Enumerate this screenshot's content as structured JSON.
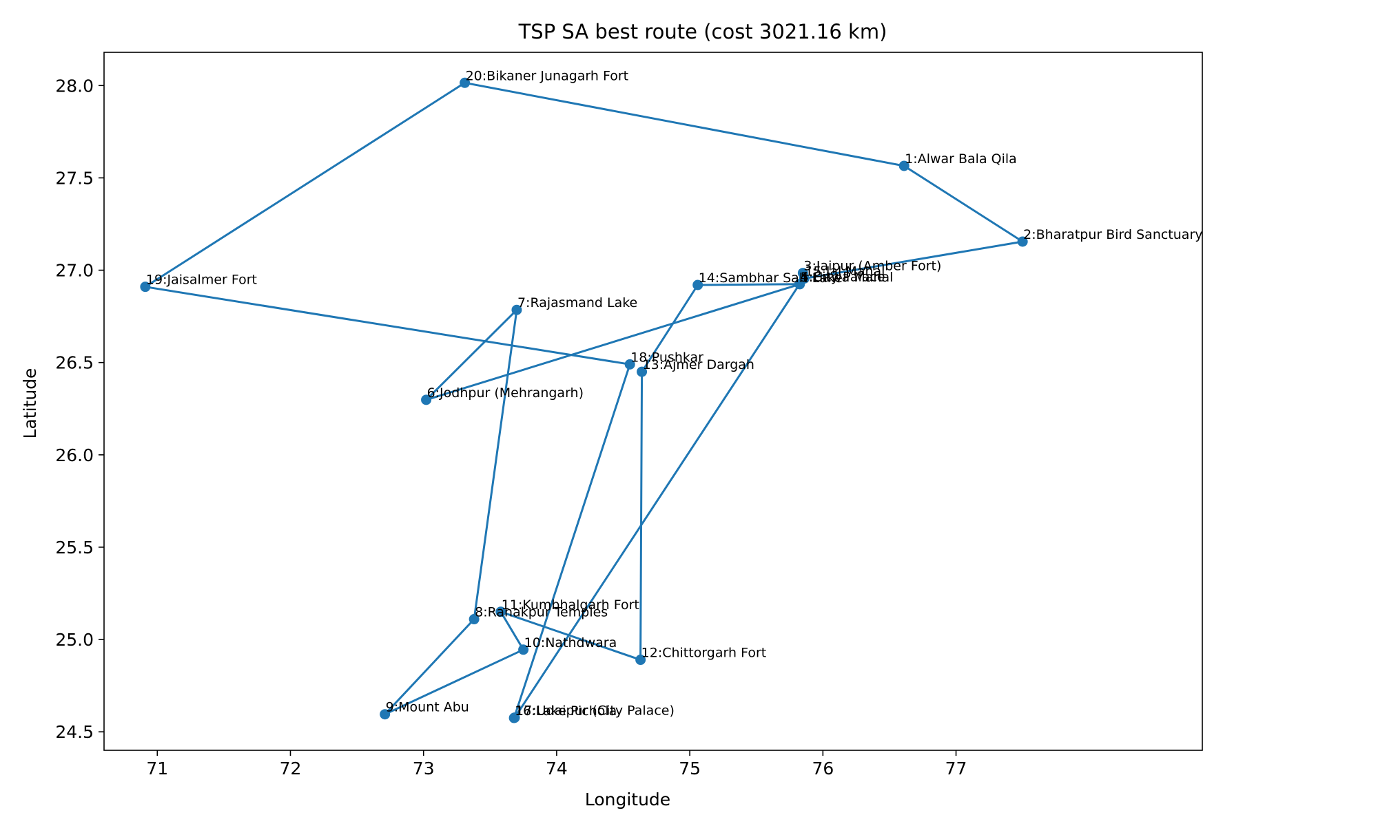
{
  "chart_data": {
    "type": "scatter",
    "title": "TSP SA best route (cost 3021.16 km)",
    "xlabel": "Longitude",
    "ylabel": "Latitude",
    "xlim": [
      70.6,
      78.85
    ],
    "ylim": [
      24.4,
      28.18
    ],
    "xticks": [
      71,
      72,
      73,
      74,
      75,
      76,
      77
    ],
    "xtick_labels": [
      "71",
      "72",
      "73",
      "74",
      "75",
      "76",
      "77"
    ],
    "yticks": [
      24.5,
      25.0,
      25.5,
      26.0,
      26.5,
      27.0,
      27.5,
      28.0
    ],
    "ytick_labels": [
      "24.5",
      "25.0",
      "25.5",
      "26.0",
      "26.5",
      "27.0",
      "27.5",
      "28.0"
    ],
    "grid": false,
    "color": "#1f77b4",
    "points": [
      {
        "label": "1:Alwar Bala Qila",
        "x": 76.61,
        "y": 27.565
      },
      {
        "label": "2:Bharatpur Bird Sanctuary",
        "x": 77.5,
        "y": 27.155
      },
      {
        "label": "3:Jaipur (Amber Fort)",
        "x": 75.85,
        "y": 26.985
      },
      {
        "label": "4:City Palace",
        "x": 75.825,
        "y": 26.925
      },
      {
        "label": "5:Hawa Mahal",
        "x": 75.826,
        "y": 26.924
      },
      {
        "label": "6:Jodhpur (Mehrangarh)",
        "x": 73.02,
        "y": 26.298
      },
      {
        "label": "7:Rajasmand Lake",
        "x": 73.7,
        "y": 26.785
      },
      {
        "label": "8:Ranakpur Temples",
        "x": 73.38,
        "y": 25.11
      },
      {
        "label": "9:Mount Abu",
        "x": 72.71,
        "y": 24.595
      },
      {
        "label": "10:Nathdwara",
        "x": 73.75,
        "y": 24.945
      },
      {
        "label": "11:Kumbhalgarh Fort",
        "x": 73.58,
        "y": 25.15
      },
      {
        "label": "12:Chittorgarh Fort",
        "x": 74.63,
        "y": 24.89
      },
      {
        "label": "13:Ajmer Dargah",
        "x": 74.64,
        "y": 26.45
      },
      {
        "label": "14:Sambhar Salt Lake",
        "x": 75.06,
        "y": 26.92
      },
      {
        "label": "15:Jal Mahal",
        "x": 75.86,
        "y": 26.955
      },
      {
        "label": "16:Lake Pichola",
        "x": 73.68,
        "y": 24.575
      },
      {
        "label": "17:Udaipur (City Palace)",
        "x": 73.685,
        "y": 24.577
      },
      {
        "label": "18:Pushkar",
        "x": 74.55,
        "y": 26.49
      },
      {
        "label": "19:Jaisalmer Fort",
        "x": 70.91,
        "y": 26.91
      },
      {
        "label": "20:Bikaner Junagarh Fort",
        "x": 73.31,
        "y": 28.015
      }
    ],
    "route": [
      20,
      1,
      2,
      15,
      3,
      5,
      6,
      7,
      8,
      9,
      10,
      11,
      12,
      13,
      14,
      4,
      17,
      16,
      18,
      19,
      20
    ]
  }
}
